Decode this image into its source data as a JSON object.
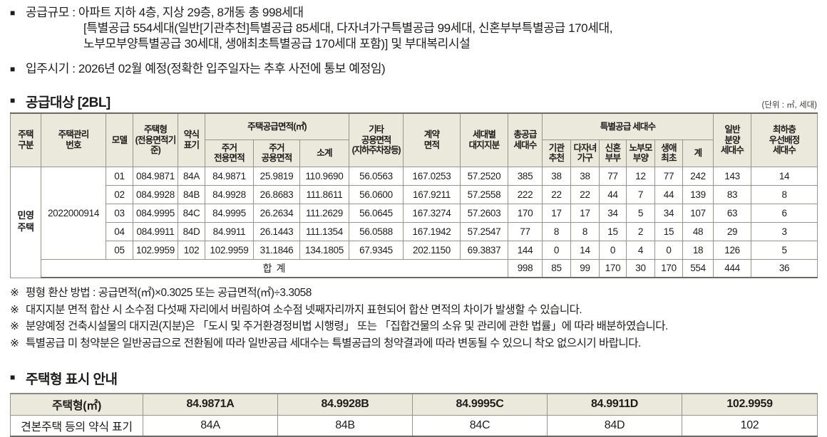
{
  "glyphs": {
    "bullet": "■",
    "note_marker": "※"
  },
  "colors": {
    "header_bg": "#ebe8dc",
    "border": "#97948c",
    "border_dark": "#6b6962",
    "text": "#1d1d1b"
  },
  "intro": {
    "lines": [
      "공급규모 : 아파트 지하 4층, 지상 29층, 8개동 총 998세대",
      "[특별공급 554세대(일반[기관추천]특별공급 85세대, 다자녀가구특별공급 99세대, 신혼부부특별공급 170세대,",
      "노부모부양특별공급 30세대, 생애최초특별공급 170세대 포함)] 및 부대복리시설",
      "입주시기 : 2026년 02월 예정(정확한 입주일자는 추후 사전에 통보 예정임)"
    ]
  },
  "supply_table": {
    "title": "공급대상 [2BL]",
    "unit_note": "(단위 : ㎡, 세대)",
    "headers": {
      "housing_class": "주택\n구분",
      "mgmt_no": "주택관리\n번호",
      "model": "모델",
      "housing_type": "주택형\n(전용면적기준)",
      "abbrev": "약식\n표기",
      "supply_area_group": "주택공급면적(㎡)",
      "exclusive_area": "주거\n전용면적",
      "common_area": "주거\n공용면적",
      "subtotal": "소계",
      "etc_common_area": "기타\n공용면적\n(지하주차장등)",
      "contract_area": "계약\n면적",
      "land_share": "세대별\n대지지분",
      "total_units": "총공급\n세대수",
      "special_group": "특별공급 세대수",
      "inst_recommend": "기관\n추천",
      "multi_child": "다자녀\n가구",
      "newlywed": "신혼\n부부",
      "elderly_support": "노부모\n부양",
      "first_time": "생애\n최초",
      "special_total": "계",
      "general_units": "일반\n분양\n세대수",
      "lowest_floor": "최하층\n우선배정\n세대수"
    },
    "group_label": "민영\n주택",
    "mgmt_no": "2022000914",
    "rows": [
      [
        "01",
        "084.9871",
        "84A",
        "84.9871",
        "25.9819",
        "110.9690",
        "56.0563",
        "167.0253",
        "57.2520",
        "385",
        "38",
        "38",
        "77",
        "12",
        "77",
        "242",
        "143",
        "14"
      ],
      [
        "02",
        "084.9928",
        "84B",
        "84.9928",
        "26.8683",
        "111.8611",
        "56.0600",
        "167.9211",
        "57.2558",
        "222",
        "22",
        "22",
        "44",
        "7",
        "44",
        "139",
        "83",
        "8"
      ],
      [
        "03",
        "084.9995",
        "84C",
        "84.9995",
        "26.2634",
        "111.2629",
        "56.0645",
        "167.3274",
        "57.2603",
        "170",
        "17",
        "17",
        "34",
        "5",
        "34",
        "107",
        "63",
        "6"
      ],
      [
        "04",
        "084.9911",
        "84D",
        "84.9911",
        "26.1443",
        "111.1354",
        "56.0588",
        "167.1942",
        "57.2547",
        "77",
        "8",
        "8",
        "15",
        "2",
        "15",
        "48",
        "29",
        "3"
      ],
      [
        "05",
        "102.9959",
        "102",
        "102.9959",
        "31.1846",
        "134.1805",
        "67.9345",
        "202.1150",
        "69.3837",
        "144",
        "0",
        "14",
        "0",
        "4",
        "0",
        "18",
        "126",
        "5"
      ]
    ],
    "total_row": {
      "label": "합 계",
      "values": [
        "998",
        "85",
        "99",
        "170",
        "30",
        "170",
        "554",
        "444",
        "36"
      ]
    }
  },
  "notes": [
    "평형 환산 방법 : 공급면적(㎡)×0.3025 또는 공급면적(㎡)÷3.3058",
    "대지지분 면적 합산 시 소수점 다섯째 자리에서 버림하여 소수점 넷째자리까지 표현되어 합산 면적의 차이가 발생할 수 있습니다.",
    "분양예정 건축시설물의 대지권(지분)은 「도시 및 주거환경정비법 시행령」 또는 「집합건물의 소유 및 관리에 관한 법률」에 따라 배분하였습니다.",
    "특별공급 미 청약분은 일반공급으로 전환됨에 따라 일반공급 세대수는 특별공급의 청약결과에 따라 변동될 수 있으니 착오 없으시기 바랍니다."
  ],
  "type_table": {
    "title": "주택형 표시 안내",
    "col_header": "주택형(㎡)",
    "row_header": "견본주택 등의 약식 표기",
    "columns": [
      {
        "type": "84.9871A",
        "abbrev": "84A"
      },
      {
        "type": "84.9928B",
        "abbrev": "84B"
      },
      {
        "type": "84.9995C",
        "abbrev": "84C"
      },
      {
        "type": "84.9911D",
        "abbrev": "84D"
      },
      {
        "type": "102.9959",
        "abbrev": "102"
      }
    ]
  }
}
